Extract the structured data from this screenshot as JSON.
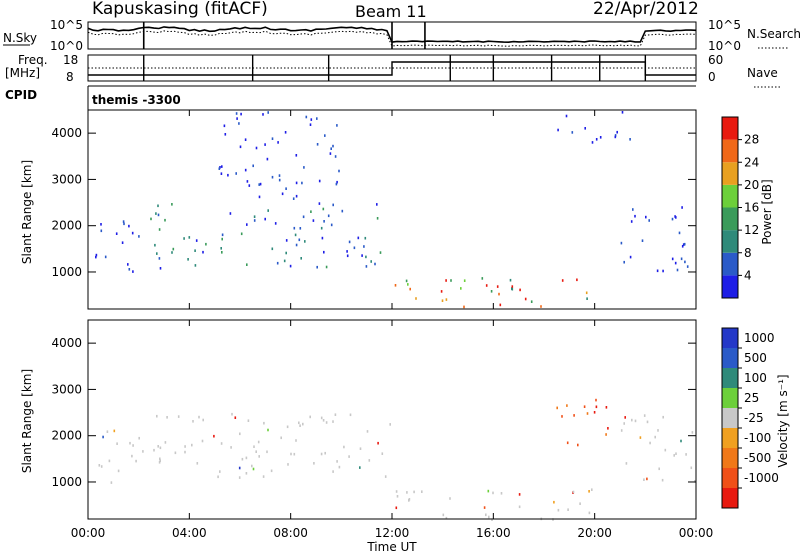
{
  "header": {
    "station": "Kapuskasing (fitACF)",
    "beam": "Beam 11",
    "date": "22/Apr/2012"
  },
  "params_panel": {
    "nsky_label": "N.Sky",
    "nsky_ticks": [
      "10^5",
      "10^0"
    ],
    "nsearch_label": "N.Search",
    "freq_label": "Freq.",
    "freq_unit": "[MHz]",
    "freq_ticks": [
      "18",
      "8"
    ],
    "nave_ticks": [
      "60",
      "0"
    ],
    "nave_label": "Nave",
    "cpid_label": "CPID",
    "cpid_value": "themis -3300"
  },
  "colors": {
    "power_scale": [
      "#1e1ee6",
      "#2a5ac8",
      "#2f8a7a",
      "#3a9b5a",
      "#6ccf3a",
      "#e8a020",
      "#f06818",
      "#e81a10"
    ],
    "velocity_scale": [
      "#2438c8",
      "#2a5ac8",
      "#2f8a7a",
      "#6ccf3a",
      "#c8c8c8",
      "#f0a020",
      "#f07818",
      "#f05018",
      "#e81a10"
    ]
  },
  "chart_data": [
    {
      "type": "heatmap",
      "name": "power",
      "ylabel": "Slant Range [km]",
      "ylim": [
        200,
        4500
      ],
      "y_ticks": [
        1000,
        2000,
        3000,
        4000
      ],
      "xlim": [
        0,
        24
      ],
      "colorbar_label": "Power [dB]",
      "colorbar_ticks": [
        4,
        8,
        12,
        16,
        20,
        24,
        28
      ],
      "colorbar_range": [
        0,
        32
      ],
      "regions": [
        {
          "t": [
            0.0,
            2.2
          ],
          "r": [
            1000,
            2200
          ],
          "level": "weak"
        },
        {
          "t": [
            2.2,
            12.0
          ],
          "r": [
            1100,
            2500
          ],
          "level": "medium"
        },
        {
          "t": [
            5.0,
            10.0
          ],
          "r": [
            2500,
            4500
          ],
          "level": "weak"
        },
        {
          "t": [
            12.0,
            20.0
          ],
          "r": [
            200,
            900
          ],
          "level": "strong"
        },
        {
          "t": [
            18.5,
            21.5
          ],
          "r": [
            3800,
            4500
          ],
          "level": "weak"
        },
        {
          "t": [
            21.0,
            24.0
          ],
          "r": [
            1000,
            2500
          ],
          "level": "weak"
        }
      ]
    },
    {
      "type": "heatmap",
      "name": "velocity",
      "ylabel": "Slant Range [km]",
      "ylim": [
        200,
        4500
      ],
      "y_ticks": [
        1000,
        2000,
        3000,
        4000
      ],
      "xlabel": "Time UT",
      "x_ticks": [
        "00:00",
        "04:00",
        "08:00",
        "12:00",
        "16:00",
        "20:00",
        "00:00"
      ],
      "xlim": [
        0,
        24
      ],
      "colorbar_label": "Velocity [m s⁻¹]",
      "colorbar_ticks": [
        "1000",
        "500",
        "100",
        "25",
        "-25",
        "-100",
        "-500",
        "-1000"
      ],
      "regions": [
        {
          "t": [
            0.0,
            2.2
          ],
          "r": [
            1000,
            2200
          ],
          "level": "ground"
        },
        {
          "t": [
            2.2,
            12.0
          ],
          "r": [
            1100,
            2500
          ],
          "level": "ground"
        },
        {
          "t": [
            12.0,
            20.0
          ],
          "r": [
            200,
            900
          ],
          "level": "ground"
        },
        {
          "t": [
            18.3,
            20.8
          ],
          "r": [
            1800,
            2800
          ],
          "level": "away"
        },
        {
          "t": [
            21.0,
            24.0
          ],
          "r": [
            1000,
            2500
          ],
          "level": "ground"
        }
      ]
    }
  ]
}
